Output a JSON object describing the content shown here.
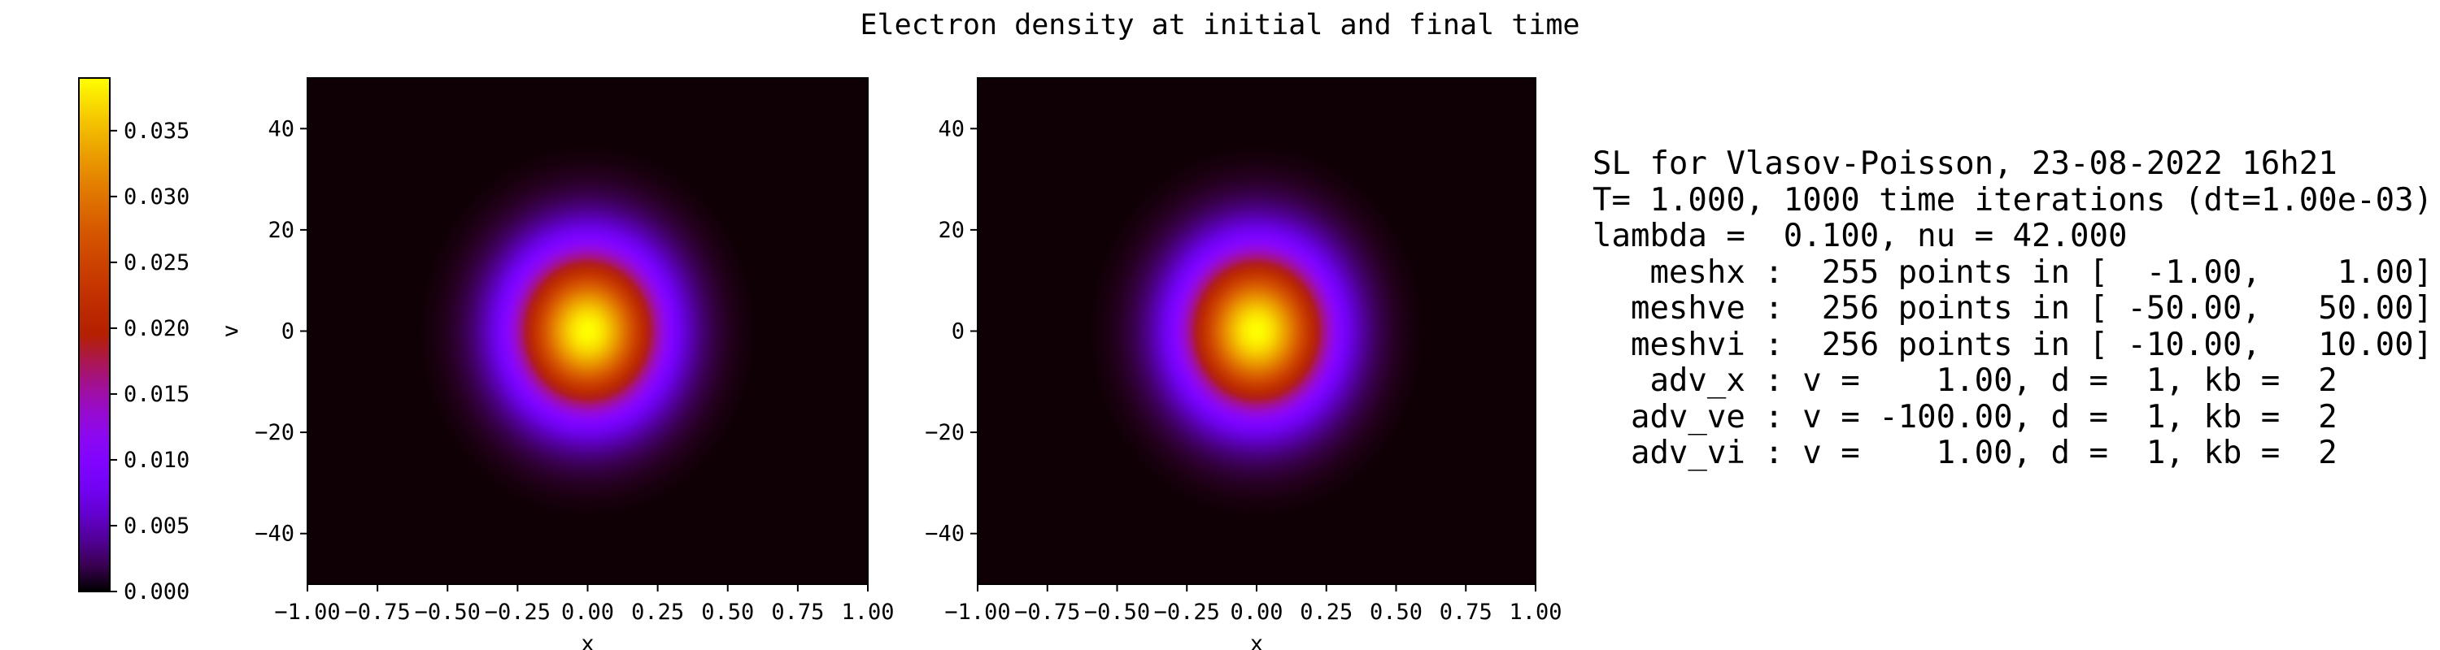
{
  "title": "Electron density at initial and final time",
  "chart_data": [
    {
      "type": "heatmap",
      "name": "initial",
      "xlabel": "x",
      "ylabel": "v",
      "xlim": [
        -1.0,
        1.0
      ],
      "ylim": [
        -50,
        50
      ],
      "x_ticks": [
        "−1.00",
        "−0.75",
        "−0.50",
        "−0.25",
        "0.00",
        "0.25",
        "0.50",
        "0.75",
        "1.00"
      ],
      "y_ticks": [
        "−40",
        "−20",
        "0",
        "20",
        "40"
      ],
      "x_tick_values": [
        -1.0,
        -0.75,
        -0.5,
        -0.25,
        0.0,
        0.25,
        0.5,
        0.75,
        1.0
      ],
      "y_tick_values": [
        -40,
        -20,
        0,
        20,
        40
      ],
      "blob": {
        "center_x": 0.0,
        "center_v": 0.0,
        "sigma_x": 0.18,
        "sigma_v": 11.0,
        "peak": 0.039
      }
    },
    {
      "type": "heatmap",
      "name": "final",
      "xlabel": "x",
      "ylabel": "",
      "xlim": [
        -1.0,
        1.0
      ],
      "ylim": [
        -50,
        50
      ],
      "x_ticks": [
        "−1.00",
        "−0.75",
        "−0.50",
        "−0.25",
        "0.00",
        "0.25",
        "0.50",
        "0.75",
        "1.00"
      ],
      "y_ticks": [
        "−40",
        "−20",
        "0",
        "20",
        "40"
      ],
      "x_tick_values": [
        -1.0,
        -0.75,
        -0.5,
        -0.25,
        0.0,
        0.25,
        0.5,
        0.75,
        1.0
      ],
      "y_tick_values": [
        -40,
        -20,
        0,
        20,
        40
      ],
      "blob": {
        "center_x": 0.0,
        "center_v": 0.0,
        "sigma_x": 0.18,
        "sigma_v": 11.0,
        "peak": 0.039
      }
    }
  ],
  "colorbar": {
    "colormap": "gnuplot",
    "range": [
      0.0,
      0.039
    ],
    "ticks": [
      "0.000",
      "0.005",
      "0.010",
      "0.015",
      "0.020",
      "0.025",
      "0.030",
      "0.035"
    ],
    "tick_values": [
      0.0,
      0.005,
      0.01,
      0.015,
      0.02,
      0.025,
      0.03,
      0.035
    ]
  },
  "info": {
    "lines": [
      "SL for Vlasov-Poisson, 23-08-2022 16h21",
      "T= 1.000, 1000 time iterations (dt=1.00e-03)",
      "lambda =  0.100, nu = 42.000",
      "   meshx :  255 points in [  -1.00,    1.00]",
      "  meshve :  256 points in [ -50.00,   50.00]",
      "  meshvi :  256 points in [ -10.00,   10.00]",
      "   adv_x : v =    1.00, d =  1, kb =  2",
      "  adv_ve : v = -100.00, d =  1, kb =  2",
      "  adv_vi : v =    1.00, d =  1, kb =  2"
    ]
  }
}
